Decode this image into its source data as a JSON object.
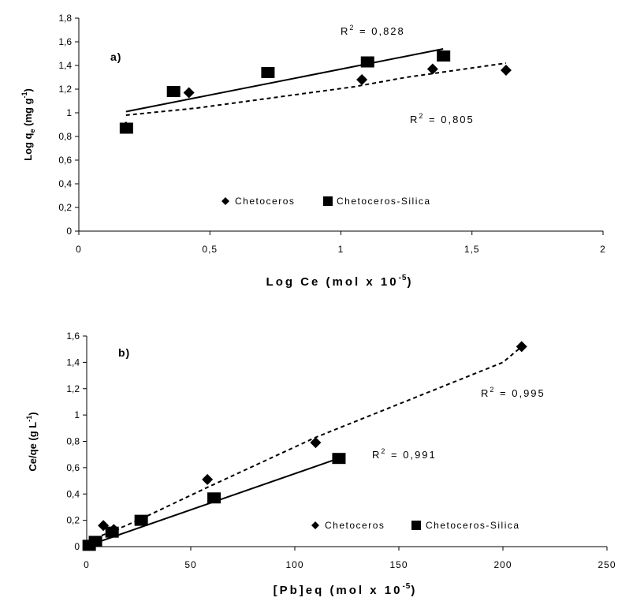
{
  "chart_data": [
    {
      "type": "scatter",
      "panel_label": "a)",
      "xlabel": {
        "base": "Log Ce (mol x 10",
        "sup": "-5",
        "tail": ")"
      },
      "ylabel": {
        "a": "Log q",
        "sub": "e",
        "b": " (mg g",
        "sup": "-1",
        "c": ")"
      },
      "xlim": [
        0,
        2
      ],
      "ylim": [
        0,
        1.8
      ],
      "xticks": [
        {
          "v": 0,
          "label": "0"
        },
        {
          "v": 0.5,
          "label": "0,5"
        },
        {
          "v": 1,
          "label": "1"
        },
        {
          "v": 1.5,
          "label": "1,5"
        },
        {
          "v": 2,
          "label": "2"
        }
      ],
      "yticks": [
        {
          "v": 0,
          "label": "0"
        },
        {
          "v": 0.2,
          "label": "0,2"
        },
        {
          "v": 0.4,
          "label": "0,4"
        },
        {
          "v": 0.6,
          "label": "0,6"
        },
        {
          "v": 0.8,
          "label": "0,8"
        },
        {
          "v": 1,
          "label": "1"
        },
        {
          "v": 1.2,
          "label": "1,2"
        },
        {
          "v": 1.4,
          "label": "1,4"
        },
        {
          "v": 1.6,
          "label": "1,6"
        },
        {
          "v": 1.8,
          "label": "1,8"
        }
      ],
      "series": [
        {
          "name": "Chetoceros",
          "marker": "diamond",
          "line": "dashed",
          "x": [
            0.18,
            0.42,
            1.08,
            1.35,
            1.63
          ],
          "y": [
            0.88,
            1.17,
            1.28,
            1.37,
            1.36
          ],
          "fit": [
            [
              0.18,
              0.98
            ],
            [
              0.45,
              1.04
            ],
            [
              1.05,
              1.22
            ],
            [
              1.25,
              1.3
            ],
            [
              1.63,
              1.42
            ]
          ]
        },
        {
          "name": "Chetoceros-Silica",
          "marker": "square",
          "line": "solid",
          "x": [
            0.18,
            0.36,
            0.72,
            1.1,
            1.39
          ],
          "y": [
            0.87,
            1.18,
            1.34,
            1.43,
            1.48
          ],
          "fit": [
            [
              0.18,
              1.01
            ],
            [
              1.39,
              1.54
            ]
          ]
        }
      ],
      "annotations": [
        {
          "base": "R",
          "sup": "2",
          "tail": " = 0,828"
        },
        {
          "base": "R",
          "sup": "2",
          "tail": " = 0,805"
        }
      ],
      "legend": {
        "position": "bottom-center",
        "entries": [
          "Chetoceros",
          "Chetoceros-Silica"
        ]
      }
    },
    {
      "type": "scatter",
      "panel_label": "b)",
      "xlabel": {
        "base": "[Pb]eq (mol x 10",
        "sup": "-5",
        "tail": ")"
      },
      "ylabel": {
        "a": "Ce/qe (g L",
        "sup": "-1",
        "c": ")"
      },
      "xlim": [
        0,
        250
      ],
      "ylim": [
        0,
        1.6
      ],
      "xticks": [
        {
          "v": 0,
          "label": "0"
        },
        {
          "v": 50,
          "label": "50"
        },
        {
          "v": 100,
          "label": "100"
        },
        {
          "v": 150,
          "label": "150"
        },
        {
          "v": 200,
          "label": "200"
        },
        {
          "v": 250,
          "label": "250"
        }
      ],
      "yticks": [
        {
          "v": 0,
          "label": "0"
        },
        {
          "v": 0.2,
          "label": "0,2"
        },
        {
          "v": 0.4,
          "label": "0,4"
        },
        {
          "v": 0.6,
          "label": "0,6"
        },
        {
          "v": 0.8,
          "label": "0,8"
        },
        {
          "v": 1,
          "label": "1"
        },
        {
          "v": 1.2,
          "label": "1,2"
        },
        {
          "v": 1.4,
          "label": "1,4"
        },
        {
          "v": 1.6,
          "label": "1,6"
        }
      ],
      "series": [
        {
          "name": "Chetoceros",
          "marker": "diamond",
          "line": "dashed",
          "x": [
            1,
            8,
            13,
            26,
            58,
            110,
            209
          ],
          "y": [
            0.01,
            0.16,
            0.13,
            0.2,
            0.51,
            0.79,
            1.52
          ],
          "fit": [
            [
              1,
              0.04
            ],
            [
              8,
              0.09
            ],
            [
              13,
              0.12
            ],
            [
              26,
              0.21
            ],
            [
              58,
              0.45
            ],
            [
              110,
              0.83
            ],
            [
              200,
              1.4
            ],
            [
              209,
              1.52
            ]
          ]
        },
        {
          "name": "Chetoceros-Silica",
          "marker": "square",
          "line": "solid",
          "x": [
            1,
            4,
            12,
            26,
            61,
            121
          ],
          "y": [
            0.01,
            0.04,
            0.11,
            0.2,
            0.37,
            0.67
          ],
          "fit": [
            [
              1,
              0.01
            ],
            [
              121,
              0.67
            ]
          ]
        }
      ],
      "annotations": [
        {
          "base": "R",
          "sup": "2",
          "tail": " = 0,995"
        },
        {
          "base": "R",
          "sup": "2",
          "tail": " = 0,991"
        }
      ],
      "legend": {
        "position": "bottom-right",
        "entries": [
          "Chetoceros",
          "Chetoceros-Silica"
        ]
      }
    }
  ]
}
